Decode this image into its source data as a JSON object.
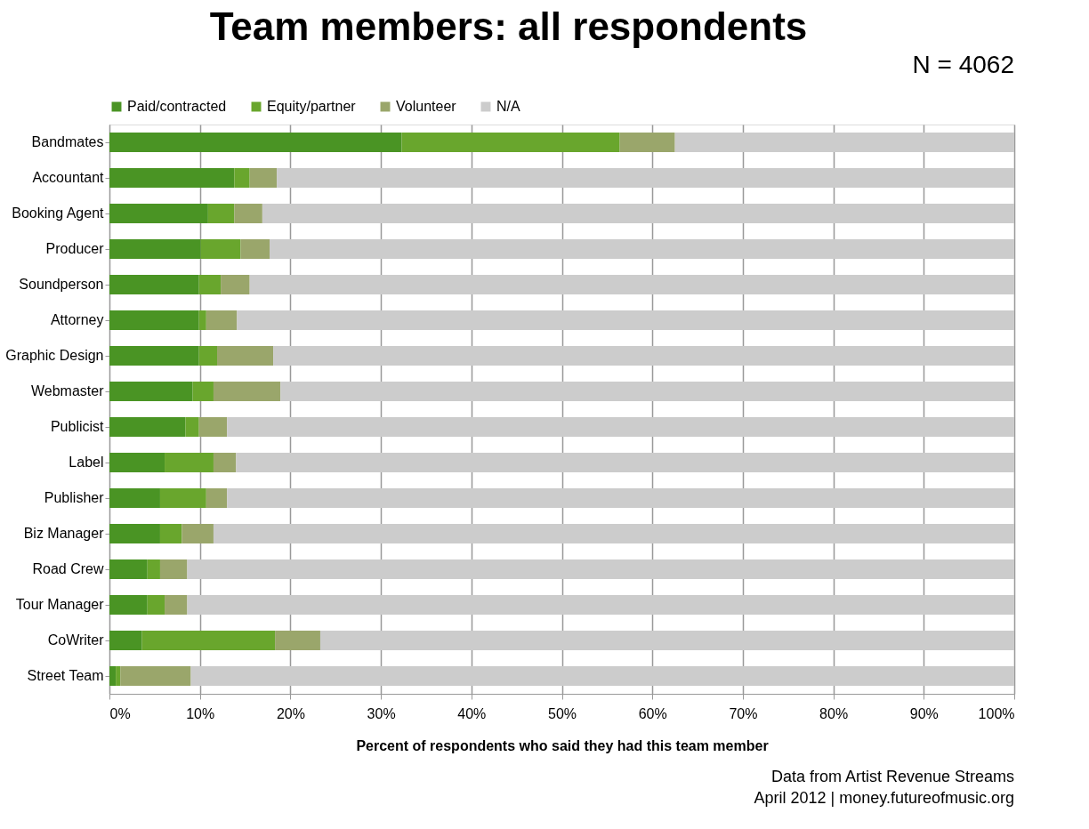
{
  "chart_data": {
    "type": "bar",
    "orientation": "horizontal",
    "stacked": true,
    "title": "Team members: all respondents",
    "xlabel": "Percent of respondents who said they had this team member",
    "categories": [
      "Bandmates",
      "Accountant",
      "Booking Agent",
      "Producer",
      "Soundperson",
      "Attorney",
      "Graphic Design",
      "Webmaster",
      "Publicist",
      "Label",
      "Publisher",
      "Biz Manager",
      "Road Crew",
      "Tour Manager",
      "CoWriter",
      "Street Team"
    ],
    "series": [
      {
        "name": "Paid/contracted",
        "color": "#4a9424",
        "values": [
          32.3,
          13.8,
          10.9,
          10.1,
          9.9,
          9.9,
          9.9,
          9.2,
          8.4,
          6.1,
          5.6,
          5.6,
          4.2,
          4.2,
          3.6,
          0.7
        ]
      },
      {
        "name": "Equity/partner",
        "color": "#69a62d",
        "values": [
          24.1,
          1.7,
          2.9,
          4.4,
          2.4,
          0.8,
          2.0,
          2.3,
          1.5,
          5.4,
          5.1,
          2.4,
          1.4,
          1.9,
          14.7,
          0.5
        ]
      },
      {
        "name": "Volunteer",
        "color": "#9aa66b",
        "values": [
          6.1,
          3.0,
          3.1,
          3.2,
          3.2,
          3.4,
          6.2,
          7.4,
          3.1,
          2.5,
          2.3,
          3.5,
          3.0,
          2.5,
          5.0,
          7.8
        ]
      },
      {
        "name": "N/A",
        "color": "#cccccc",
        "values": [
          37.5,
          81.5,
          83.1,
          82.3,
          84.5,
          85.9,
          81.9,
          81.1,
          87.0,
          86.0,
          87.0,
          88.5,
          91.4,
          91.4,
          76.7,
          91.0
        ]
      }
    ],
    "xlim": [
      0,
      100
    ],
    "xticks": [
      {
        "value": 0,
        "label": "0%"
      },
      {
        "value": 10,
        "label": "10%"
      },
      {
        "value": 20,
        "label": "20%"
      },
      {
        "value": 30,
        "label": "30%"
      },
      {
        "value": 40,
        "label": "40%"
      },
      {
        "value": 50,
        "label": "50%"
      },
      {
        "value": 60,
        "label": "60%"
      },
      {
        "value": 70,
        "label": "70%"
      },
      {
        "value": 80,
        "label": "80%"
      },
      {
        "value": 90,
        "label": "90%"
      },
      {
        "value": 100,
        "label": "100%"
      }
    ],
    "grid": "x",
    "legend": "top",
    "annotations": [
      "N = 4062",
      "Data from Artist Revenue Streams",
      "April 2012 | money.futureofmusic.org"
    ]
  }
}
